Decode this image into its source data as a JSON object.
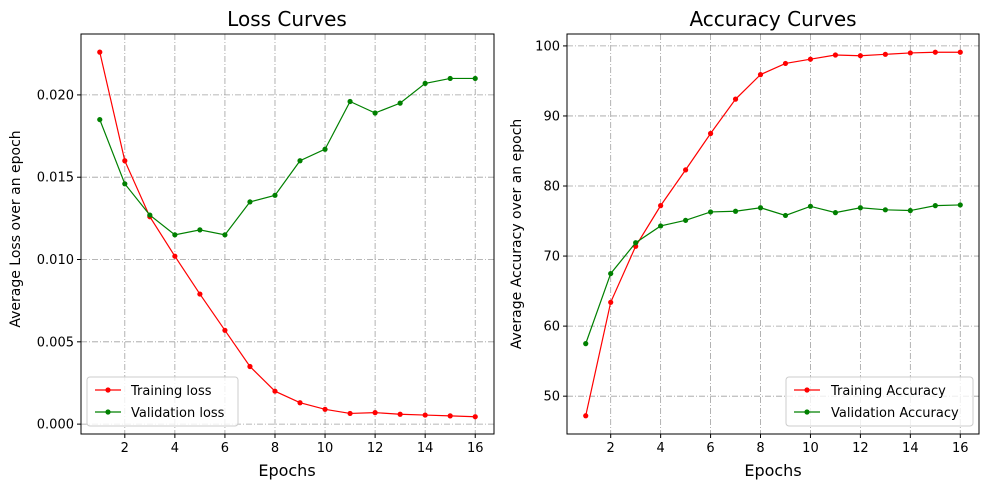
{
  "chart_data": [
    {
      "type": "line",
      "title": "Loss Curves",
      "xlabel": "Epochs",
      "ylabel": "Average Loss over an epoch",
      "x": [
        1,
        2,
        3,
        4,
        5,
        6,
        7,
        8,
        9,
        10,
        11,
        12,
        13,
        14,
        15,
        16
      ],
      "xlim": [
        0.25,
        16.75
      ],
      "ylim": [
        -0.0006,
        0.0237
      ],
      "xticks": [
        2,
        4,
        6,
        8,
        10,
        12,
        14,
        16
      ],
      "xtick_labels": [
        "2",
        "4",
        "6",
        "8",
        "10",
        "12",
        "14",
        "16"
      ],
      "yticks": [
        0,
        0.005,
        0.01,
        0.015,
        0.02
      ],
      "ytick_labels": [
        "0.000",
        "0.005",
        "0.010",
        "0.015",
        "0.020"
      ],
      "grid": true,
      "legend_position": "lower-left",
      "series": [
        {
          "name": "Training loss",
          "color": "#ff0000",
          "values": [
            0.0226,
            0.016,
            0.0126,
            0.0102,
            0.0079,
            0.0057,
            0.0035,
            0.002,
            0.0013,
            0.0009,
            0.00065,
            0.0007,
            0.0006,
            0.00055,
            0.0005,
            0.00045
          ]
        },
        {
          "name": "Validation loss",
          "color": "#008000",
          "values": [
            0.0185,
            0.0146,
            0.0127,
            0.0115,
            0.0118,
            0.0115,
            0.0135,
            0.0139,
            0.016,
            0.0167,
            0.0196,
            0.0189,
            0.0195,
            0.0207,
            0.021,
            0.021
          ]
        }
      ]
    },
    {
      "type": "line",
      "title": "Accuracy Curves",
      "xlabel": "Epochs",
      "ylabel": "Average Accuracy over an epoch",
      "x": [
        1,
        2,
        3,
        4,
        5,
        6,
        7,
        8,
        9,
        10,
        11,
        12,
        13,
        14,
        15,
        16
      ],
      "xlim": [
        0.25,
        16.75
      ],
      "ylim": [
        44.6,
        101.7
      ],
      "xticks": [
        2,
        4,
        6,
        8,
        10,
        12,
        14,
        16
      ],
      "xtick_labels": [
        "2",
        "4",
        "6",
        "8",
        "10",
        "12",
        "14",
        "16"
      ],
      "yticks": [
        50,
        60,
        70,
        80,
        90,
        100
      ],
      "ytick_labels": [
        "50",
        "60",
        "70",
        "80",
        "90",
        "100"
      ],
      "grid": true,
      "legend_position": "lower-right",
      "series": [
        {
          "name": "Training Accuracy",
          "color": "#ff0000",
          "values": [
            47.2,
            63.4,
            71.4,
            77.2,
            82.3,
            87.5,
            92.4,
            95.9,
            97.5,
            98.1,
            98.7,
            98.6,
            98.8,
            99.0,
            99.1,
            99.1
          ]
        },
        {
          "name": "Validation Accuracy",
          "color": "#008000",
          "values": [
            57.5,
            67.5,
            71.9,
            74.3,
            75.1,
            76.3,
            76.4,
            76.9,
            75.8,
            77.1,
            76.2,
            76.9,
            76.6,
            76.5,
            77.2,
            77.3
          ]
        }
      ]
    }
  ]
}
